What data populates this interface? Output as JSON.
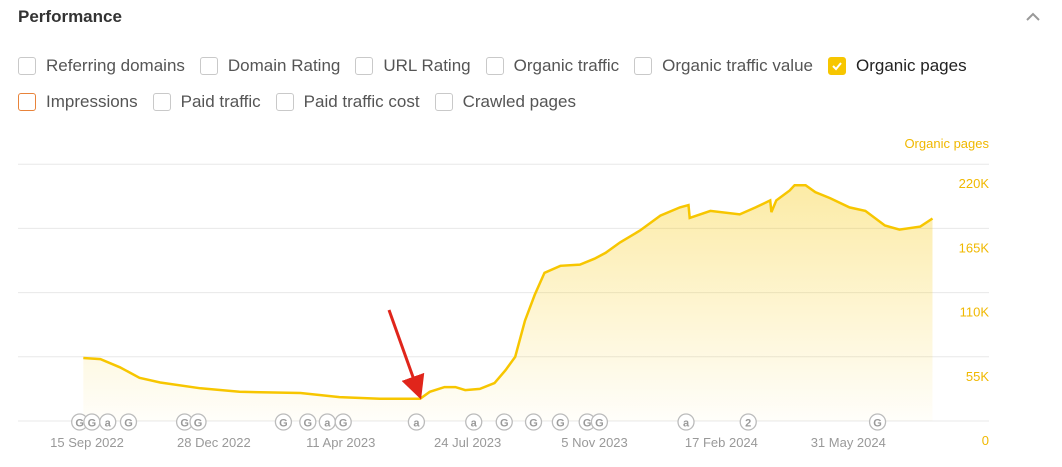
{
  "header": {
    "title": "Performance"
  },
  "metrics": [
    {
      "label": "Referring domains",
      "checked": false
    },
    {
      "label": "Domain Rating",
      "checked": false
    },
    {
      "label": "URL Rating",
      "checked": false
    },
    {
      "label": "Organic traffic",
      "checked": false
    },
    {
      "label": "Organic traffic value",
      "checked": false
    },
    {
      "label": "Organic pages",
      "checked": true,
      "color": "#f7c600"
    },
    {
      "label": "Impressions",
      "checked": false,
      "color": "#e8833a"
    },
    {
      "label": "Paid traffic",
      "checked": false
    },
    {
      "label": "Paid traffic cost",
      "checked": false
    },
    {
      "label": "Crawled pages",
      "checked": false
    }
  ],
  "chart_data": {
    "type": "area",
    "series": [
      {
        "name": "Organic pages",
        "color": "#f7c600",
        "points": [
          [
            "2022-09-12",
            54000
          ],
          [
            "2022-09-26",
            53000
          ],
          [
            "2022-10-12",
            46000
          ],
          [
            "2022-10-28",
            37000
          ],
          [
            "2022-11-14",
            33000
          ],
          [
            "2022-12-17",
            28000
          ],
          [
            "2023-01-18",
            25000
          ],
          [
            "2023-03-09",
            24000
          ],
          [
            "2023-04-10",
            20500
          ],
          [
            "2023-05-13",
            19000
          ],
          [
            "2023-06-15",
            19000
          ],
          [
            "2023-06-23",
            25000
          ],
          [
            "2023-07-05",
            29000
          ],
          [
            "2023-07-14",
            29000
          ],
          [
            "2023-07-22",
            26500
          ],
          [
            "2023-08-03",
            27500
          ],
          [
            "2023-08-15",
            32500
          ],
          [
            "2023-08-24",
            43500
          ],
          [
            "2023-09-01",
            55000
          ],
          [
            "2023-09-09",
            86000
          ],
          [
            "2023-09-17",
            108000
          ],
          [
            "2023-09-25",
            127000
          ],
          [
            "2023-10-08",
            133000
          ],
          [
            "2023-10-24",
            134000
          ],
          [
            "2023-11-05",
            139000
          ],
          [
            "2023-11-14",
            144000
          ],
          [
            "2023-11-26",
            153000
          ],
          [
            "2023-12-12",
            163000
          ],
          [
            "2023-12-29",
            176000
          ],
          [
            "2024-01-14",
            183000
          ],
          [
            "2024-01-21",
            185000
          ],
          [
            "2024-01-22",
            174000
          ],
          [
            "2024-02-08",
            180000
          ],
          [
            "2024-03-03",
            177000
          ],
          [
            "2024-03-16",
            183000
          ],
          [
            "2024-03-28",
            189000
          ],
          [
            "2024-03-29",
            179000
          ],
          [
            "2024-04-02",
            189000
          ],
          [
            "2024-04-13",
            197500
          ],
          [
            "2024-04-17",
            202000
          ],
          [
            "2024-04-26",
            202000
          ],
          [
            "2024-05-04",
            196000
          ],
          [
            "2024-05-16",
            191000
          ],
          [
            "2024-06-01",
            183000
          ],
          [
            "2024-06-14",
            180000
          ],
          [
            "2024-06-30",
            167500
          ],
          [
            "2024-07-12",
            164000
          ],
          [
            "2024-07-29",
            166500
          ],
          [
            "2024-08-08",
            173500
          ]
        ]
      }
    ],
    "y_axis_label": "Organic pages",
    "y_ticks": [
      "0",
      "55K",
      "110K",
      "165K",
      "220K"
    ],
    "y_tick_values": [
      0,
      55000,
      110000,
      165000,
      220000
    ],
    "x_ticks": [
      [
        "2022-09-15",
        "15 Sep 2022"
      ],
      [
        "2022-12-28",
        "28 Dec 2022"
      ],
      [
        "2023-04-11",
        "11 Apr 2023"
      ],
      [
        "2023-07-24",
        "24 Jul 2023"
      ],
      [
        "2023-11-05",
        "5 Nov 2023"
      ],
      [
        "2024-02-17",
        "17 Feb 2024"
      ],
      [
        "2024-05-31",
        "31 May 2024"
      ]
    ],
    "grid": true,
    "annotations": [
      [
        "2022-09-09",
        "G"
      ],
      [
        "2022-09-19",
        "G"
      ],
      [
        "2022-10-02",
        "a"
      ],
      [
        "2022-10-19",
        "G"
      ],
      [
        "2022-12-04",
        "G"
      ],
      [
        "2022-12-15",
        "G"
      ],
      [
        "2023-02-23",
        "G"
      ],
      [
        "2023-03-15",
        "G"
      ],
      [
        "2023-03-31",
        "a"
      ],
      [
        "2023-04-13",
        "G"
      ],
      [
        "2023-06-12",
        "a"
      ],
      [
        "2023-07-29",
        "a"
      ],
      [
        "2023-08-23",
        "G"
      ],
      [
        "2023-09-16",
        "G"
      ],
      [
        "2023-10-08",
        "G"
      ],
      [
        "2023-10-30",
        "G"
      ],
      [
        "2023-11-09",
        "G"
      ],
      [
        "2024-01-19",
        "a"
      ],
      [
        "2024-03-10",
        "2"
      ],
      [
        "2024-06-24",
        "G"
      ]
    ],
    "arrow_color": "#e0251b"
  }
}
